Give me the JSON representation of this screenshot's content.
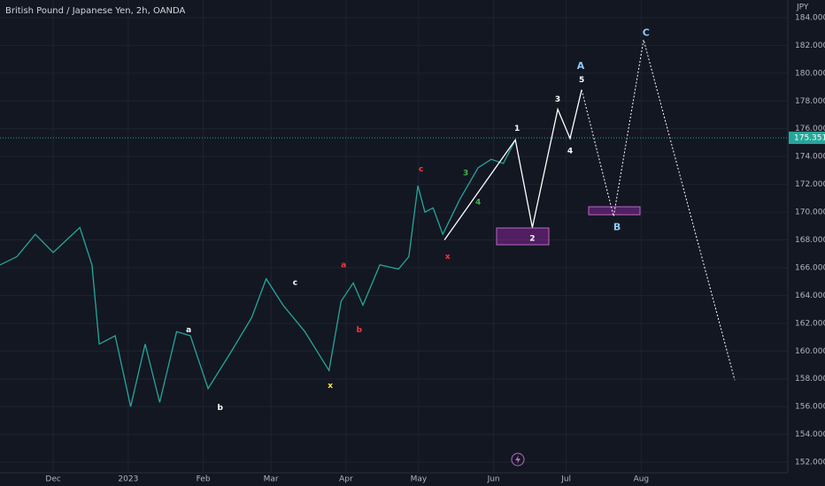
{
  "chart_data": {
    "type": "line",
    "title": "British Pound / Japanese Yen, 2h, OANDA",
    "y_axis_label": "JPY",
    "current_price": 175.351,
    "xlim": [
      8,
      333.6
    ],
    "ylim": [
      151.24,
      185.27
    ],
    "xticks": [
      {
        "value": 30,
        "label": "Dec"
      },
      {
        "value": 61,
        "label": "2023"
      },
      {
        "value": 92,
        "label": "Feb"
      },
      {
        "value": 120,
        "label": "Mar"
      },
      {
        "value": 151,
        "label": "Apr"
      },
      {
        "value": 181,
        "label": "May"
      },
      {
        "value": 212,
        "label": "Jun"
      },
      {
        "value": 242,
        "label": "Jul"
      },
      {
        "value": 273,
        "label": "Aug"
      }
    ],
    "yticks": [
      {
        "value": 152,
        "label": "152.000"
      },
      {
        "value": 154,
        "label": "154.000"
      },
      {
        "value": 156,
        "label": "156.000"
      },
      {
        "value": 158,
        "label": "158.000"
      },
      {
        "value": 160,
        "label": "160.000"
      },
      {
        "value": 162,
        "label": "162.000"
      },
      {
        "value": 164,
        "label": "164.000"
      },
      {
        "value": 166,
        "label": "166.000"
      },
      {
        "value": 168,
        "label": "168.000"
      },
      {
        "value": 170,
        "label": "170.000"
      },
      {
        "value": 172,
        "label": "172.000"
      },
      {
        "value": 174,
        "label": "174.000"
      },
      {
        "value": 176,
        "label": "176.000"
      },
      {
        "value": 178,
        "label": "178.000"
      },
      {
        "value": 180,
        "label": "180.000"
      },
      {
        "value": 182,
        "label": "182.000"
      },
      {
        "value": 184,
        "label": "184.000"
      }
    ],
    "grid": true,
    "series": [
      {
        "color": "#26a69a",
        "dash": false,
        "x": [
          8,
          15,
          22.6,
          30,
          41,
          46,
          49,
          55.6,
          62,
          68,
          74,
          81,
          86.7,
          94,
          103,
          112,
          118,
          125,
          134,
          144,
          149,
          154,
          158,
          165,
          172.7,
          177,
          180.7,
          183.6,
          187,
          191,
          198,
          205.6,
          211,
          216,
          221
        ],
        "values": [
          166.2,
          166.8,
          168.4,
          167.1,
          168.9,
          166.2,
          160.5,
          161.1,
          156.0,
          160.5,
          156.3,
          161.4,
          161.1,
          157.3,
          159.8,
          162.4,
          165.2,
          163.3,
          161.4,
          158.6,
          163.6,
          164.9,
          163.3,
          166.2,
          165.9,
          166.8,
          171.9,
          170.0,
          170.3,
          168.4,
          170.9,
          173.2,
          173.8,
          173.5,
          175.2
        ]
      },
      {
        "color": "#ffffff",
        "dash": false,
        "x": [
          191.7,
          221,
          228,
          238.5,
          243.6,
          248.4
        ],
        "values": [
          168.0,
          175.2,
          168.9,
          177.4,
          175.3,
          178.8
        ]
      },
      {
        "color": "#ffffff",
        "dash": true,
        "x": [
          248.4,
          261.6,
          274,
          311.7
        ],
        "values": [
          178.8,
          169.7,
          182.4,
          157.9
        ]
      }
    ],
    "annotations": [
      {
        "text": "a",
        "x": 86,
        "y": 161.5,
        "color": "#ffffff"
      },
      {
        "text": "b",
        "x": 99,
        "y": 155.9,
        "color": "#ffffff"
      },
      {
        "text": "c",
        "x": 130,
        "y": 164.9,
        "color": "#ffffff"
      },
      {
        "text": "a",
        "x": 150,
        "y": 166.2,
        "color": "#f23645"
      },
      {
        "text": "b",
        "x": 156.5,
        "y": 161.5,
        "color": "#f23645"
      },
      {
        "text": "x",
        "x": 144.5,
        "y": 157.5,
        "color": "#ffeb3b"
      },
      {
        "text": "c",
        "x": 182,
        "y": 173.1,
        "color": "#f23645"
      },
      {
        "text": "x",
        "x": 193,
        "y": 166.8,
        "color": "#f23645"
      },
      {
        "text": "3",
        "x": 200.5,
        "y": 172.8,
        "color": "#4caf50"
      },
      {
        "text": "4",
        "x": 205.6,
        "y": 170.7,
        "color": "#4caf50"
      },
      {
        "text": "1",
        "x": 221.7,
        "y": 176.0,
        "color": "#ffffff"
      },
      {
        "text": "2",
        "x": 228,
        "y": 168.1,
        "color": "#ffffff"
      },
      {
        "text": "3",
        "x": 238.5,
        "y": 178.1,
        "color": "#ffffff"
      },
      {
        "text": "4",
        "x": 243.6,
        "y": 174.4,
        "color": "#ffffff"
      },
      {
        "text": "5",
        "x": 248.4,
        "y": 179.5,
        "color": "#ffffff"
      },
      {
        "text": "A",
        "x": 248,
        "y": 180.5,
        "color": "#90caf9"
      },
      {
        "text": "B",
        "x": 263,
        "y": 168.9,
        "color": "#90caf9"
      },
      {
        "text": "C",
        "x": 275,
        "y": 182.9,
        "color": "#90caf9"
      }
    ]
  }
}
